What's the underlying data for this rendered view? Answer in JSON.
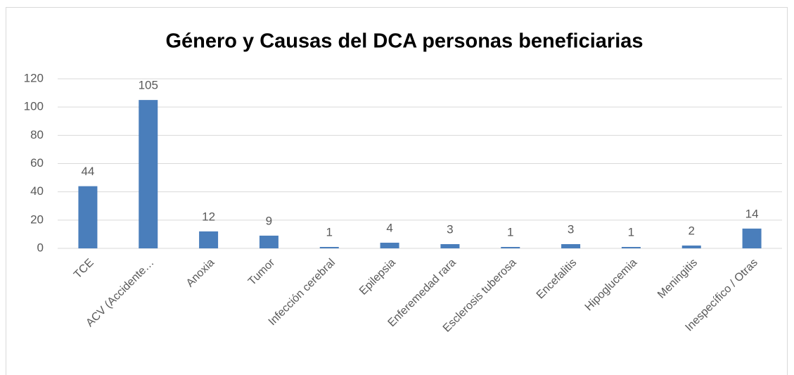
{
  "chart_data": {
    "type": "bar",
    "title": "Género y Causas del DCA personas beneficiarias",
    "categories": [
      "TCE",
      "ACV (Accidente…",
      "Anoxia",
      "Tumor",
      "Infección cerebral",
      "Epilepsia",
      "Enferemedad rara",
      "Esclerosis tuberosa",
      "Encefalitis",
      "Hipoglucemia",
      "Meningitis",
      "Inespecífico / Otras"
    ],
    "values": [
      44,
      105,
      12,
      9,
      1,
      4,
      3,
      1,
      3,
      1,
      2,
      14
    ],
    "color": "#4a7ebb",
    "ylim": [
      0,
      120
    ],
    "yticks": [
      0,
      20,
      40,
      60,
      80,
      100,
      120
    ],
    "grid": true
  }
}
